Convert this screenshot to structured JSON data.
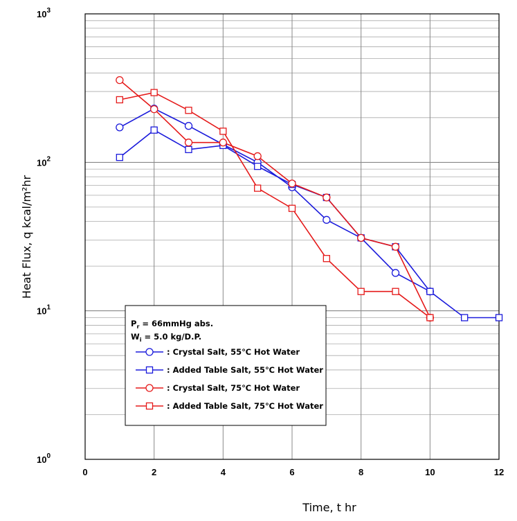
{
  "chart_data": {
    "type": "line",
    "title": "",
    "xlabel": "Time,  t   hr",
    "ylabel": "Heat Flux,  q   kcal/m²hr",
    "xlim": [
      0,
      12
    ],
    "ylim": [
      1,
      1000
    ],
    "yscale": "log",
    "grid": true,
    "x_ticks": [
      "0",
      "2",
      "4",
      "6",
      "8",
      "10",
      "12"
    ],
    "y_ticks": [
      {
        "base": "10",
        "exp": "0",
        "value": 1
      },
      {
        "base": "10",
        "exp": "1",
        "value": 10
      },
      {
        "base": "10",
        "exp": "2",
        "value": 100
      },
      {
        "base": "10",
        "exp": "3",
        "value": 1000
      }
    ],
    "legend": {
      "placement": "bottom-left",
      "conditions": [
        {
          "main": "P",
          "sub": "r",
          "rest": " = 66mmHg abs."
        },
        {
          "main": "W",
          "sub": "i",
          "rest": " = 5.0 kg/D.P."
        }
      ]
    },
    "series": [
      {
        "name": ": Crystal Salt, 55℃ Hot Water",
        "color": "#1a1adb",
        "marker": "circle",
        "x": [
          1,
          2,
          3,
          4,
          5,
          6,
          7,
          8,
          9,
          10
        ],
        "y": [
          172,
          230,
          176,
          132,
          100,
          68,
          41,
          31,
          18,
          13.5
        ]
      },
      {
        "name": ": Added Table Salt, 55℃ Hot Water",
        "color": "#1a1adb",
        "marker": "square",
        "x": [
          1,
          2,
          3,
          4,
          5,
          6,
          7,
          8,
          9,
          10,
          11,
          12
        ],
        "y": [
          108,
          165,
          122,
          130,
          94,
          71,
          58,
          31,
          27,
          13.5,
          9,
          9
        ]
      },
      {
        "name": ": Crystal Salt, 75℃ Hot Water",
        "color": "#e51a1a",
        "marker": "circle",
        "x": [
          1,
          2,
          3,
          4,
          5,
          6,
          7,
          8,
          9,
          10
        ],
        "y": [
          358,
          228,
          136,
          136,
          110,
          72,
          58,
          31,
          27,
          9
        ]
      },
      {
        "name": ": Added Table Salt, 75℃ Hot Water",
        "color": "#e51a1a",
        "marker": "square",
        "x": [
          1,
          2,
          3,
          4,
          5,
          6,
          7,
          8,
          9,
          10
        ],
        "y": [
          264,
          295,
          224,
          162,
          67,
          49,
          22.5,
          13.5,
          13.5,
          9
        ]
      }
    ]
  }
}
